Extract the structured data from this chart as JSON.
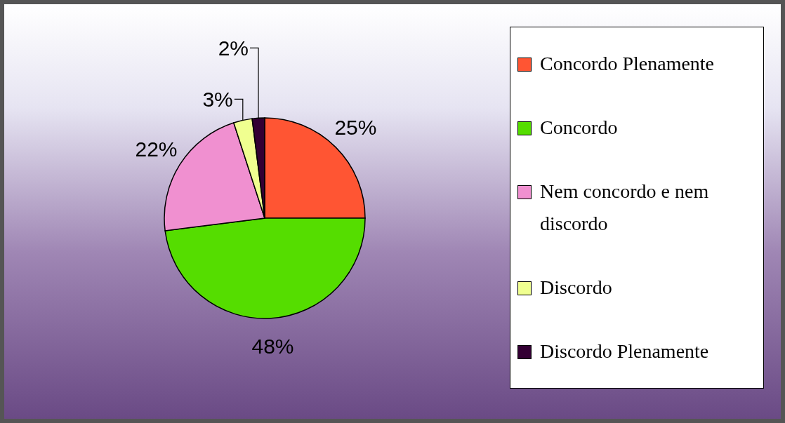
{
  "chart_data": {
    "type": "pie",
    "categories": [
      "Concordo Plenamente",
      "Concordo",
      "Nem concordo e nem discordo",
      "Discordo",
      "Discordo Plenamente"
    ],
    "values": [
      25,
      48,
      22,
      3,
      2
    ],
    "colors": [
      "#ff5533",
      "#55dd00",
      "#f090d0",
      "#f0ff90",
      "#330033"
    ],
    "value_labels": [
      "25%",
      "48%",
      "22%",
      "3%",
      "2%"
    ],
    "legend": "right"
  }
}
